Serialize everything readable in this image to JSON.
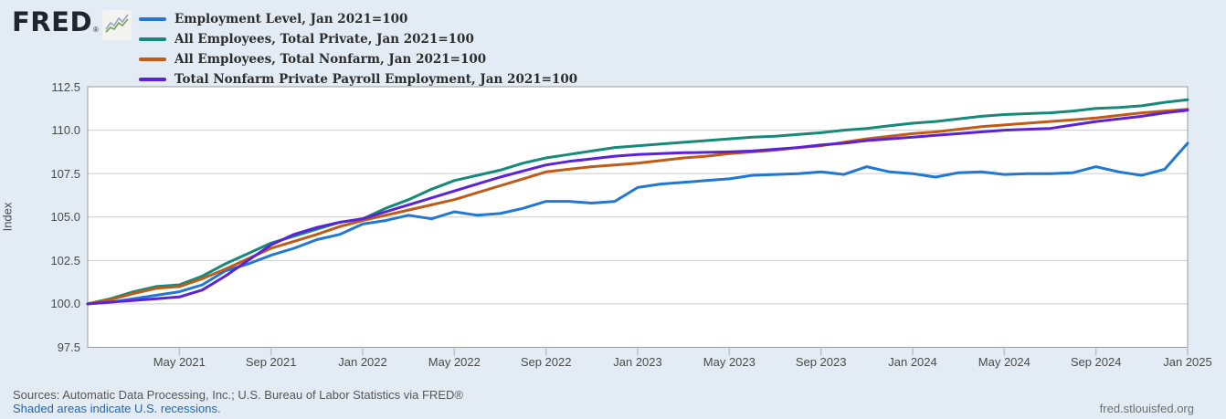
{
  "brand": {
    "logo_text": "FRED",
    "registered_mark": "®"
  },
  "y_axis": {
    "title": "Index"
  },
  "footer": {
    "sources_text": "Sources: Automatic Data Processing, Inc.; U.S. Bureau of Labor Statistics via FRED®",
    "recession_note": "Shaded areas indicate U.S. recessions.",
    "site_url": "fred.stlouisfed.org"
  },
  "chart_data": {
    "type": "line",
    "index_note": "Jan 2021=100",
    "frequency": "monthly",
    "x_start": "Jan 2021",
    "x_end": "Jan 2025",
    "ylabel": "Index",
    "ylim": [
      97.5,
      112.5
    ],
    "y_ticks": [
      "112.5",
      "110.0",
      "107.5",
      "105.0",
      "102.5",
      "100.0",
      "97.5"
    ],
    "y_tick_values": [
      112.5,
      110.0,
      107.5,
      105.0,
      102.5,
      100.0,
      97.5
    ],
    "grid": "horizontal",
    "legend_position": "top-left",
    "x_tick_labels": [
      "May 2021",
      "Sep 2021",
      "Jan 2022",
      "May 2022",
      "Sep 2022",
      "Jan 2023",
      "May 2023",
      "Sep 2023",
      "Jan 2024",
      "May 2024",
      "Sep 2024",
      "Jan 2025"
    ],
    "x_tick_month_indices": [
      4,
      8,
      12,
      16,
      20,
      24,
      28,
      32,
      36,
      40,
      44,
      48
    ],
    "months": [
      "Jan 2021",
      "Feb 2021",
      "Mar 2021",
      "Apr 2021",
      "May 2021",
      "Jun 2021",
      "Jul 2021",
      "Aug 2021",
      "Sep 2021",
      "Oct 2021",
      "Nov 2021",
      "Dec 2021",
      "Jan 2022",
      "Feb 2022",
      "Mar 2022",
      "Apr 2022",
      "May 2022",
      "Jun 2022",
      "Jul 2022",
      "Aug 2022",
      "Sep 2022",
      "Oct 2022",
      "Nov 2022",
      "Dec 2022",
      "Jan 2023",
      "Feb 2023",
      "Mar 2023",
      "Apr 2023",
      "May 2023",
      "Jun 2023",
      "Jul 2023",
      "Aug 2023",
      "Sep 2023",
      "Oct 2023",
      "Nov 2023",
      "Dec 2023",
      "Jan 2024",
      "Feb 2024",
      "Mar 2024",
      "Apr 2024",
      "May 2024",
      "Jun 2024",
      "Jul 2024",
      "Aug 2024",
      "Sep 2024",
      "Oct 2024",
      "Nov 2024",
      "Dec 2024",
      "Jan 2025"
    ],
    "series": [
      {
        "name": "Employment Level, Jan 2021=100",
        "color": "#2077d4",
        "values": [
          100.0,
          100.1,
          100.3,
          100.5,
          100.7,
          101.1,
          101.9,
          102.3,
          102.8,
          103.2,
          103.7,
          104.0,
          104.6,
          104.8,
          105.1,
          104.9,
          105.3,
          105.1,
          105.2,
          105.5,
          105.9,
          105.9,
          105.8,
          105.9,
          106.7,
          106.9,
          107.0,
          107.1,
          107.2,
          107.4,
          107.45,
          107.5,
          107.6,
          107.45,
          107.9,
          107.6,
          107.5,
          107.3,
          107.55,
          107.6,
          107.45,
          107.5,
          107.5,
          107.55,
          107.9,
          107.6,
          107.4,
          107.75,
          109.25
        ]
      },
      {
        "name": "All Employees, Total Private, Jan 2021=100",
        "color": "#17897a",
        "values": [
          100.0,
          100.3,
          100.7,
          101.0,
          101.1,
          101.6,
          102.3,
          102.9,
          103.5,
          103.9,
          104.3,
          104.7,
          104.9,
          105.5,
          106.0,
          106.6,
          107.1,
          107.4,
          107.7,
          108.1,
          108.4,
          108.6,
          108.8,
          109.0,
          109.1,
          109.2,
          109.3,
          109.4,
          109.5,
          109.6,
          109.65,
          109.75,
          109.85,
          110.0,
          110.1,
          110.25,
          110.4,
          110.5,
          110.65,
          110.8,
          110.9,
          110.95,
          111.0,
          111.1,
          111.25,
          111.3,
          111.4,
          111.6,
          111.75
        ]
      },
      {
        "name": "All Employees, Total Nonfarm, Jan 2021=100",
        "color": "#bf5b16",
        "values": [
          100.0,
          100.25,
          100.6,
          100.9,
          101.0,
          101.45,
          102.0,
          102.6,
          103.2,
          103.6,
          104.0,
          104.45,
          104.8,
          105.1,
          105.4,
          105.7,
          106.0,
          106.4,
          106.8,
          107.2,
          107.6,
          107.75,
          107.9,
          108.0,
          108.1,
          108.25,
          108.4,
          108.5,
          108.65,
          108.75,
          108.85,
          109.0,
          109.1,
          109.3,
          109.5,
          109.65,
          109.8,
          109.9,
          110.05,
          110.2,
          110.3,
          110.4,
          110.5,
          110.6,
          110.7,
          110.85,
          111.0,
          111.1,
          111.2
        ]
      },
      {
        "name": "Total Nonfarm Private Payroll Employment, Jan 2021=100",
        "color": "#5c22d8",
        "values": [
          100.0,
          100.1,
          100.2,
          100.3,
          100.4,
          100.8,
          101.6,
          102.5,
          103.4,
          104.0,
          104.4,
          104.7,
          104.9,
          105.3,
          105.7,
          106.1,
          106.5,
          106.9,
          107.3,
          107.65,
          108.0,
          108.2,
          108.35,
          108.5,
          108.6,
          108.65,
          108.7,
          108.72,
          108.75,
          108.8,
          108.9,
          109.0,
          109.15,
          109.25,
          109.4,
          109.5,
          109.6,
          109.7,
          109.8,
          109.9,
          110.0,
          110.05,
          110.1,
          110.3,
          110.5,
          110.65,
          110.8,
          111.0,
          111.15
        ]
      }
    ]
  }
}
